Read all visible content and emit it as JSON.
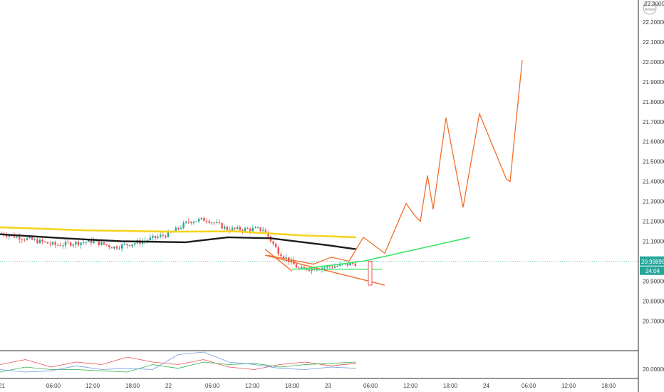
{
  "chart_data": {
    "type": "candlestick",
    "title": "",
    "xlabel": "",
    "ylabel": "",
    "ylim": [
      20.6,
      22.3
    ],
    "grid": false,
    "y_ticks": [
      "22.20000",
      "22.10000",
      "22.00000",
      "21.90000",
      "21.80000",
      "21.70000",
      "21.60000",
      "21.50000",
      "21.40000",
      "21.30000",
      "21.20000",
      "21.10000",
      "20.90000",
      "20.80000",
      "20.70000"
    ],
    "x_ticks": [
      "21",
      "06:00",
      "12:00",
      "18:00",
      "22",
      "06:00",
      "12:00",
      "18:00",
      "23",
      "06:00",
      "12:00",
      "18:00",
      "24",
      "06:00",
      "12:00",
      "18:00"
    ],
    "indicator_tick": "20.00000",
    "last_price": {
      "label": "20.99895",
      "value": 20.99895,
      "countdown": "24:04"
    },
    "top_partial_tick": "22.30000",
    "colors": {
      "up": "#26a69a",
      "down": "#ef5350",
      "ma_long": "#f5d31e",
      "ma_short": "#1b1b1b",
      "projection": "#f36d2a",
      "trendline": "#3ee66a",
      "osc_red": "#e35151",
      "osc_green": "#32b34a",
      "osc_blue": "#6f9be0",
      "osc_purple": "#c58fe0"
    },
    "candles_hint": "decreasing through day 21, rise on day 22 morning near 21.22, sell-off afternoon to 20.95, consolidation on day 23",
    "moving_averages": [
      {
        "color": "yellow",
        "points": [
          [
            0,
            21.17
          ],
          [
            120,
            21.155
          ],
          [
            240,
            21.148
          ],
          [
            330,
            21.15
          ],
          [
            420,
            21.13
          ],
          [
            500,
            21.12
          ]
        ]
      },
      {
        "color": "black",
        "points": [
          [
            0,
            21.135
          ],
          [
            90,
            21.115
          ],
          [
            170,
            21.1
          ],
          [
            260,
            21.095
          ],
          [
            320,
            21.12
          ],
          [
            380,
            21.115
          ],
          [
            460,
            21.08
          ],
          [
            500,
            21.06
          ]
        ]
      }
    ],
    "projection_path": [
      [
        375,
        21.03
      ],
      [
        440,
        20.985
      ],
      [
        465,
        21.02
      ],
      [
        490,
        21.0
      ],
      [
        510,
        21.12
      ],
      [
        540,
        21.04
      ],
      [
        570,
        21.29
      ],
      [
        582,
        21.23
      ],
      [
        590,
        21.2
      ],
      [
        600,
        21.43
      ],
      [
        608,
        21.26
      ],
      [
        626,
        21.72
      ],
      [
        650,
        21.27
      ],
      [
        673,
        21.74
      ],
      [
        711,
        21.41
      ],
      [
        716,
        21.4
      ],
      [
        733,
        22.01
      ]
    ],
    "channel": {
      "lower": [
        [
          372,
          21.03
        ],
        [
          540,
          20.88
        ]
      ],
      "upper": [
        [
          372,
          21.06
        ],
        [
          410,
          20.95
        ]
      ]
    },
    "trendline": [
      [
        420,
        20.96
      ],
      [
        510,
        21.0
      ],
      [
        660,
        21.12
      ]
    ],
    "support_line": [
      [
        410,
        20.96
      ],
      [
        536,
        20.96
      ]
    ],
    "oscillator": {
      "series": [
        {
          "color": "red",
          "values": [
            0.5,
            0.7,
            0.4,
            0.6,
            0.5,
            0.8,
            0.6,
            0.5,
            0.7,
            0.4,
            0.3,
            0.5,
            0.6,
            0.45,
            0.55
          ]
        },
        {
          "color": "green",
          "values": [
            0.2,
            0.4,
            0.3,
            0.3,
            0.25,
            0.2,
            0.5,
            0.35,
            0.6,
            0.5,
            0.55,
            0.4,
            0.5,
            0.55,
            0.6
          ]
        },
        {
          "color": "blue",
          "values": [
            0.3,
            0.2,
            0.25,
            0.45,
            0.3,
            0.35,
            0.3,
            0.9,
            1.0,
            0.6,
            0.5,
            0.35,
            0.3,
            0.4,
            0.35
          ]
        }
      ]
    }
  },
  "watermark": {
    "line1": "21.XXXXX",
    "line2": "AVGN"
  }
}
